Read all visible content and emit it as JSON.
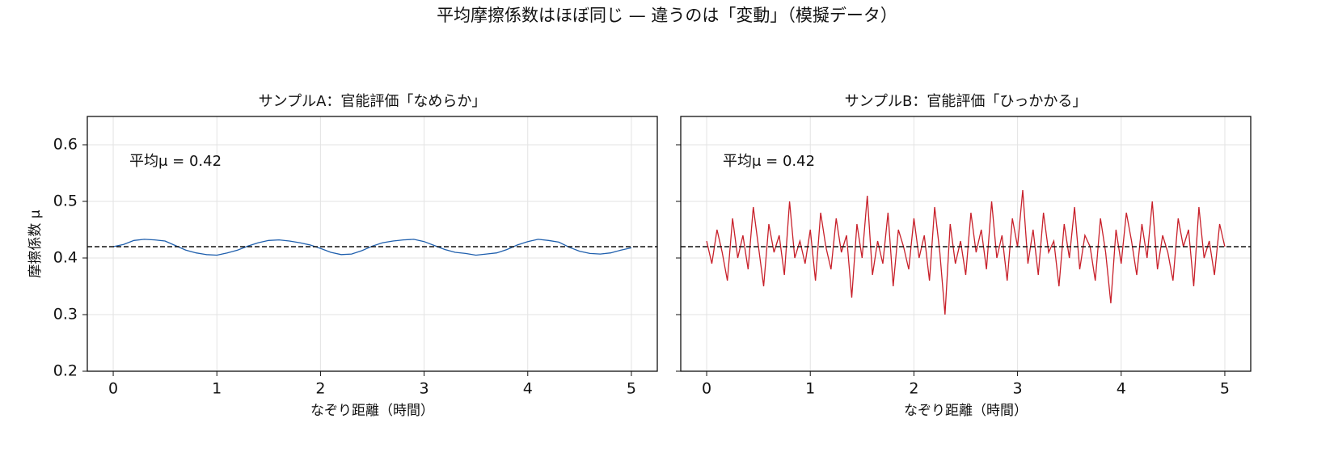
{
  "title": "平均摩擦係数はほぼ同じ — 違うのは「変動」（模擬データ）",
  "chart_data": [
    {
      "type": "line",
      "title": "サンプルA：官能評価「なめらか」",
      "xlabel": "なぞり距離（時間）",
      "ylabel": "摩擦係数 μ",
      "annotation": "平均μ = 0.42",
      "hline": 0.42,
      "grid": true,
      "ytick_labels": true,
      "xlim": [
        -0.25,
        5.25
      ],
      "ylim": [
        0.2,
        0.65
      ],
      "xticks": [
        0,
        1,
        2,
        3,
        4,
        5
      ],
      "yticks": [
        0.2,
        0.3,
        0.4,
        0.5,
        0.6
      ],
      "x": [
        0,
        0.1,
        0.2,
        0.3,
        0.4,
        0.5,
        0.6,
        0.7,
        0.8,
        0.9,
        1,
        1.1,
        1.2,
        1.3,
        1.4,
        1.5,
        1.6,
        1.7,
        1.8,
        1.9,
        2,
        2.1,
        2.2,
        2.3,
        2.4,
        2.5,
        2.6,
        2.7,
        2.8,
        2.9,
        3,
        3.1,
        3.2,
        3.3,
        3.4,
        3.5,
        3.6,
        3.7,
        3.8,
        3.9,
        4,
        4.1,
        4.2,
        4.3,
        4.4,
        4.5,
        4.6,
        4.7,
        4.8,
        4.9,
        5
      ],
      "series": [
        {
          "color": "#1f5fad",
          "values": [
            0.42,
            0.424,
            0.431,
            0.433,
            0.432,
            0.43,
            0.422,
            0.414,
            0.409,
            0.406,
            0.405,
            0.409,
            0.414,
            0.421,
            0.427,
            0.431,
            0.432,
            0.43,
            0.427,
            0.423,
            0.417,
            0.41,
            0.406,
            0.407,
            0.413,
            0.421,
            0.427,
            0.43,
            0.432,
            0.433,
            0.429,
            0.422,
            0.415,
            0.41,
            0.408,
            0.405,
            0.407,
            0.409,
            0.415,
            0.423,
            0.429,
            0.433,
            0.431,
            0.428,
            0.419,
            0.412,
            0.408,
            0.407,
            0.409,
            0.414,
            0.418
          ]
        }
      ]
    },
    {
      "type": "line",
      "title": "サンプルB：官能評価「ひっかかる」",
      "xlabel": "なぞり距離（時間）",
      "annotation": "平均μ = 0.42",
      "hline": 0.42,
      "grid": true,
      "ytick_labels": false,
      "xlim": [
        -0.25,
        5.25
      ],
      "ylim": [
        0.2,
        0.65
      ],
      "xticks": [
        0,
        1,
        2,
        3,
        4,
        5
      ],
      "yticks": [
        0.2,
        0.3,
        0.4,
        0.5,
        0.6
      ],
      "x": [
        0,
        0.05,
        0.1,
        0.15,
        0.2,
        0.25,
        0.3,
        0.35,
        0.4,
        0.45,
        0.5,
        0.55,
        0.6,
        0.65,
        0.7,
        0.75,
        0.8,
        0.85,
        0.9,
        0.95,
        1,
        1.05,
        1.1,
        1.15,
        1.2,
        1.25,
        1.3,
        1.35,
        1.4,
        1.45,
        1.5,
        1.55,
        1.6,
        1.65,
        1.7,
        1.75,
        1.8,
        1.85,
        1.9,
        1.95,
        2,
        2.05,
        2.1,
        2.15,
        2.2,
        2.25,
        2.3,
        2.35,
        2.4,
        2.45,
        2.5,
        2.55,
        2.6,
        2.65,
        2.7,
        2.75,
        2.8,
        2.85,
        2.9,
        2.95,
        3,
        3.05,
        3.1,
        3.15,
        3.2,
        3.25,
        3.3,
        3.35,
        3.4,
        3.45,
        3.5,
        3.55,
        3.6,
        3.65,
        3.7,
        3.75,
        3.8,
        3.85,
        3.9,
        3.95,
        4,
        4.05,
        4.1,
        4.15,
        4.2,
        4.25,
        4.3,
        4.35,
        4.4,
        4.45,
        4.5,
        4.55,
        4.6,
        4.65,
        4.7,
        4.75,
        4.8,
        4.85,
        4.9,
        4.95,
        5
      ],
      "series": [
        {
          "color": "#c8202a",
          "values": [
            0.43,
            0.39,
            0.45,
            0.41,
            0.36,
            0.47,
            0.4,
            0.44,
            0.38,
            0.49,
            0.42,
            0.35,
            0.46,
            0.41,
            0.44,
            0.37,
            0.5,
            0.4,
            0.43,
            0.39,
            0.45,
            0.36,
            0.48,
            0.42,
            0.38,
            0.47,
            0.41,
            0.44,
            0.33,
            0.46,
            0.4,
            0.51,
            0.37,
            0.43,
            0.39,
            0.48,
            0.35,
            0.45,
            0.42,
            0.38,
            0.47,
            0.4,
            0.44,
            0.36,
            0.49,
            0.41,
            0.3,
            0.46,
            0.39,
            0.43,
            0.37,
            0.48,
            0.41,
            0.45,
            0.38,
            0.5,
            0.4,
            0.44,
            0.36,
            0.47,
            0.42,
            0.52,
            0.39,
            0.45,
            0.37,
            0.48,
            0.41,
            0.43,
            0.35,
            0.46,
            0.4,
            0.49,
            0.38,
            0.44,
            0.42,
            0.36,
            0.47,
            0.41,
            0.32,
            0.45,
            0.39,
            0.48,
            0.43,
            0.37,
            0.46,
            0.4,
            0.5,
            0.38,
            0.44,
            0.41,
            0.36,
            0.47,
            0.42,
            0.45,
            0.35,
            0.49,
            0.4,
            0.43,
            0.37,
            0.46,
            0.42
          ]
        }
      ]
    }
  ]
}
